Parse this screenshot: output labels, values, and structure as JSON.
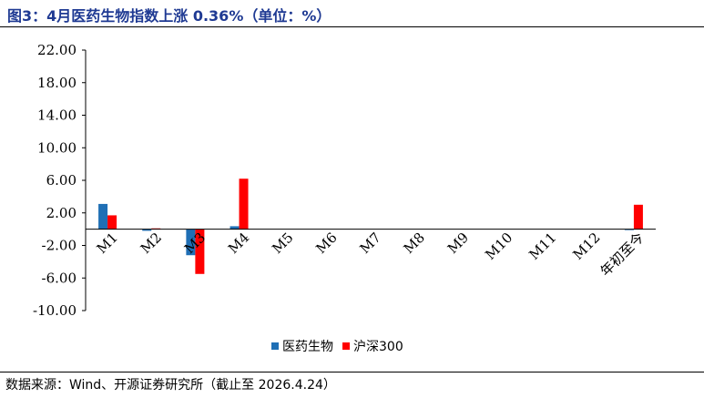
{
  "title": "图3：4月医药生物指数上涨 0.36%（单位：%）",
  "source": "数据来源：Wind、开源证券研究所（截止至 2026.4.24）",
  "chart_data": {
    "type": "bar",
    "categories": [
      "M1",
      "M2",
      "M3",
      "M4",
      "M5",
      "M6",
      "M7",
      "M8",
      "M9",
      "M10",
      "M11",
      "M12",
      "年初至今"
    ],
    "series": [
      {
        "name": "医药生物",
        "color": "#1f6fb5",
        "values": [
          3.1,
          -0.2,
          -3.2,
          0.36,
          0,
          0,
          0,
          0,
          0,
          0,
          0,
          0,
          -0.1
        ]
      },
      {
        "name": "沪深300",
        "color": "#ff0000",
        "values": [
          1.7,
          0.1,
          -5.5,
          6.2,
          0,
          0,
          0,
          0,
          0,
          0,
          0,
          0,
          3.0
        ]
      }
    ],
    "yticks": [
      "22.00",
      "18.00",
      "14.00",
      "10.00",
      "6.00",
      "2.00",
      "-2.00",
      "-6.00",
      "-10.00"
    ],
    "ylim": [
      -10,
      22
    ],
    "legend_position": "bottom"
  }
}
